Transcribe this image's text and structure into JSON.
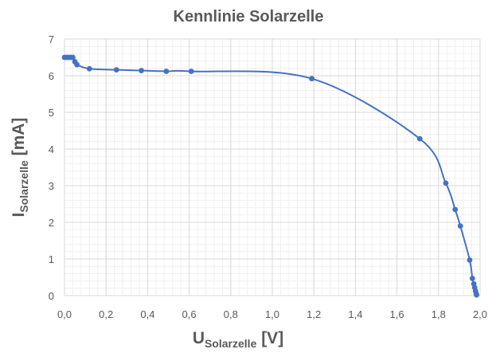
{
  "chart_data": {
    "type": "scatter",
    "title": "Kennlinie Solarzelle",
    "xlabel": {
      "main": "U",
      "sub": "Solarzelle",
      "unit": " [V]"
    },
    "ylabel": {
      "main": "I",
      "sub": "Solarzelle",
      "unit": " [mA]"
    },
    "xlim": [
      0,
      2
    ],
    "ylim": [
      0,
      7
    ],
    "x_major_step": 0.2,
    "y_major_step": 1,
    "x_minor_step": 0.04,
    "y_minor_step": 0.2,
    "x_tick_labels": [
      "0,0",
      "0,2",
      "0,4",
      "0,6",
      "0,8",
      "1,0",
      "1,2",
      "1,4",
      "1,6",
      "1,8",
      "2,0"
    ],
    "y_tick_labels": [
      "0",
      "1",
      "2",
      "3",
      "4",
      "5",
      "6",
      "7"
    ],
    "grid": true,
    "smooth_line": true,
    "legend": "none",
    "series": [
      {
        "color": "#4472C4",
        "points": [
          [
            0.0,
            6.5
          ],
          [
            0.01,
            6.5
          ],
          [
            0.02,
            6.5
          ],
          [
            0.03,
            6.5
          ],
          [
            0.04,
            6.5
          ],
          [
            0.05,
            6.38
          ],
          [
            0.06,
            6.3
          ],
          [
            0.12,
            6.19
          ],
          [
            0.25,
            6.16
          ],
          [
            0.37,
            6.14
          ],
          [
            0.49,
            6.12
          ],
          [
            0.61,
            6.12
          ],
          [
            1.19,
            5.92
          ],
          [
            1.71,
            4.28
          ],
          [
            1.835,
            3.07
          ],
          [
            1.88,
            2.35
          ],
          [
            1.905,
            1.9
          ],
          [
            1.95,
            0.97
          ],
          [
            1.963,
            0.47
          ],
          [
            1.97,
            0.32
          ],
          [
            1.974,
            0.22
          ],
          [
            1.978,
            0.13
          ],
          [
            1.981,
            0.06
          ],
          [
            1.983,
            0.02
          ]
        ]
      }
    ]
  }
}
